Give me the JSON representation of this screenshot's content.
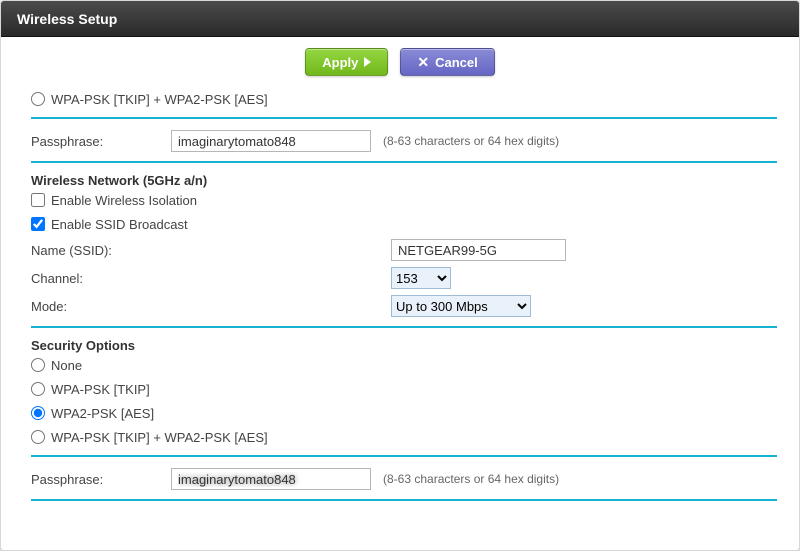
{
  "title": "Wireless Setup",
  "buttons": {
    "apply": "Apply",
    "cancel": "Cancel"
  },
  "sec24": {
    "mixed_label": "WPA-PSK [TKIP] + WPA2-PSK [AES]",
    "mixed_checked": false,
    "pass_label": "Passphrase:",
    "pass_value": "imaginarytomato848",
    "pass_hint": "(8-63 characters or 64 hex digits)"
  },
  "net5": {
    "heading": "Wireless Network (5GHz a/n)",
    "isolation_label": "Enable Wireless Isolation",
    "isolation_checked": false,
    "ssidbc_label": "Enable SSID Broadcast",
    "ssidbc_checked": true,
    "ssid_label": "Name (SSID):",
    "ssid_value": "NETGEAR99-5G",
    "channel_label": "Channel:",
    "channel_value": "153",
    "mode_label": "Mode:",
    "mode_value": "Up to 300 Mbps"
  },
  "sec5": {
    "heading": "Security Options",
    "opt_none": "None",
    "opt_wpa": "WPA-PSK [TKIP]",
    "opt_wpa2": "WPA2-PSK [AES]",
    "opt_mixed": "WPA-PSK [TKIP] + WPA2-PSK [AES]",
    "selected": "wpa2",
    "pass_label": "Passphrase:",
    "pass_value": "imaginarytomato848",
    "pass_hint": "(8-63 characters or 64 hex digits)"
  },
  "colors": {
    "divider": "#14b3d2",
    "apply_bg": "#80c62a",
    "cancel_bg": "#7071ca"
  }
}
